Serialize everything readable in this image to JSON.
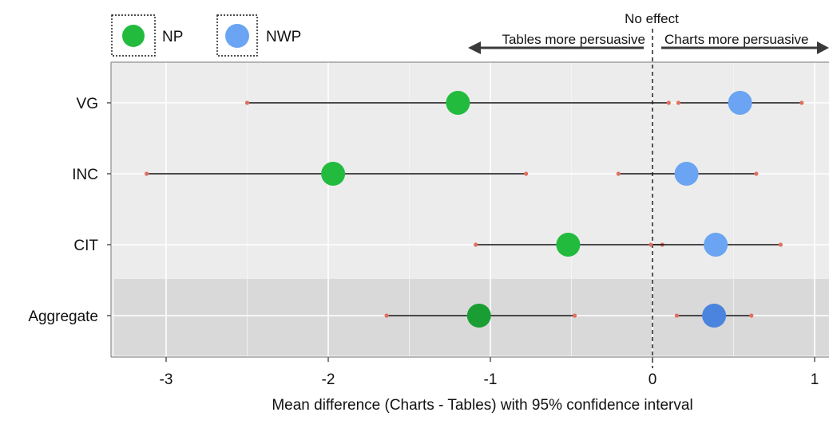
{
  "chart_data": {
    "type": "scatter",
    "subtype": "forest-plot",
    "title": "",
    "xlabel": "Mean difference (Charts - Tables) with 95% confidence interval",
    "ylabel": "",
    "xlim": [
      -3.3,
      1.1
    ],
    "x_ticks": [
      -3,
      -2,
      -1,
      0,
      1
    ],
    "x_tick_labels": [
      "-3",
      "-2",
      "-1",
      "0",
      "1"
    ],
    "categories": [
      "VG",
      "INC",
      "CIT",
      "Aggregate"
    ],
    "highlighted_category": "Aggregate",
    "grid": true,
    "legend_position": "top-left",
    "reference_line": {
      "x": 0,
      "label": "No effect",
      "style": "dashed"
    },
    "direction_annotations": {
      "left": "Tables more persuasive",
      "right": "Charts more persuasive"
    },
    "series": [
      {
        "name": "NP",
        "color": "#22bb3e",
        "aggregate_color": "#1a9e34",
        "points": [
          {
            "category": "VG",
            "mean": -1.2,
            "ci_low": -2.5,
            "ci_high": 0.1
          },
          {
            "category": "INC",
            "mean": -1.97,
            "ci_low": -3.12,
            "ci_high": -0.78
          },
          {
            "category": "CIT",
            "mean": -0.52,
            "ci_low": -1.09,
            "ci_high": 0.06
          },
          {
            "category": "Aggregate",
            "mean": -1.07,
            "ci_low": -1.64,
            "ci_high": -0.48
          }
        ]
      },
      {
        "name": "NWP",
        "color": "#6aa4f3",
        "aggregate_color": "#4a84de",
        "points": [
          {
            "category": "VG",
            "mean": 0.54,
            "ci_low": 0.16,
            "ci_high": 0.92
          },
          {
            "category": "INC",
            "mean": 0.21,
            "ci_low": -0.21,
            "ci_high": 0.64
          },
          {
            "category": "CIT",
            "mean": 0.39,
            "ci_low": -0.01,
            "ci_high": 0.79
          },
          {
            "category": "Aggregate",
            "mean": 0.38,
            "ci_low": 0.15,
            "ci_high": 0.61
          }
        ]
      }
    ],
    "ci_endpoint_color": "#e07060"
  }
}
